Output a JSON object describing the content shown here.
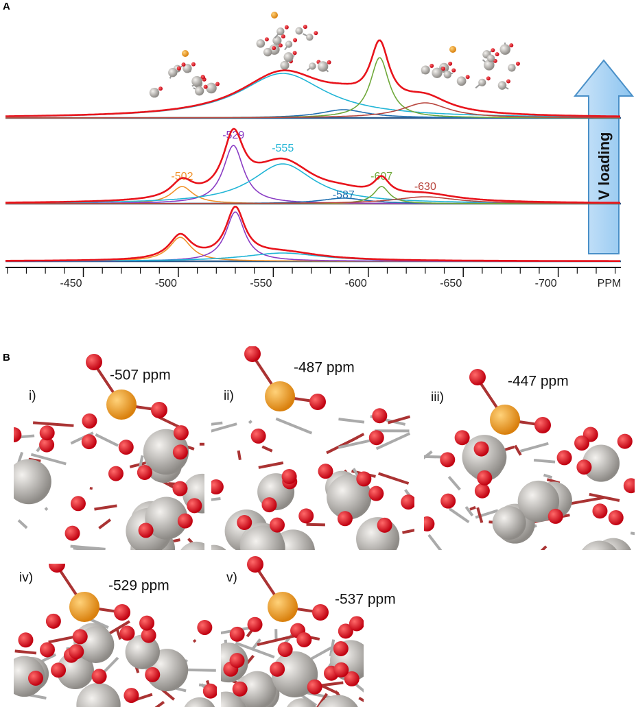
{
  "panel_a": {
    "label": "A",
    "type": "spectrum",
    "x_axis_label": "PPM",
    "xlim": [
      -409,
      -733
    ],
    "xticks": [
      -450,
      -500,
      -550,
      -600,
      -650,
      -700
    ],
    "minor_xticks": [
      -410,
      -420,
      -430,
      -440,
      -460,
      -470,
      -480,
      -490,
      -510,
      -520,
      -530,
      -540,
      -560,
      -570,
      -580,
      -590,
      -610,
      -620,
      -630,
      -640,
      -660,
      -670,
      -680,
      -690,
      -710,
      -720,
      -730
    ],
    "sum_color": "#e8141c",
    "arrow_label": "V loading",
    "spectra": [
      {
        "components": [
          {
            "center": -555,
            "width": 55,
            "amplitude": 65,
            "color": "#21b5d6",
            "labeled": false
          },
          {
            "center": -587,
            "width": 30,
            "amplitude": 12,
            "color": "#1f6fb0",
            "labeled": false
          },
          {
            "center": -606,
            "width": 12,
            "amplitude": 88,
            "color": "#6fa83a",
            "labeled": false
          },
          {
            "center": -630,
            "width": 30,
            "amplitude": 22,
            "color": "#b8463e",
            "labeled": false
          }
        ]
      },
      {
        "components": [
          {
            "center": -502,
            "width": 14,
            "amplitude": 25,
            "color": "#f0922a",
            "labeled": true
          },
          {
            "center": -529,
            "width": 13,
            "amplitude": 85,
            "color": "#8a3cc4",
            "labeled": true
          },
          {
            "center": -555,
            "width": 40,
            "amplitude": 58,
            "color": "#21b5d6",
            "labeled": true
          },
          {
            "center": -587,
            "width": 30,
            "amplitude": 8,
            "color": "#1f6fb0",
            "labeled": true
          },
          {
            "center": -607,
            "width": 10,
            "amplitude": 25,
            "color": "#6fa83a",
            "labeled": true
          },
          {
            "center": -630,
            "width": 40,
            "amplitude": 10,
            "color": "#b8463e",
            "labeled": true
          }
        ]
      },
      {
        "components": [
          {
            "center": -501,
            "width": 14,
            "amplitude": 35,
            "color": "#f0922a",
            "labeled": false
          },
          {
            "center": -530,
            "width": 12,
            "amplitude": 72,
            "color": "#8a3cc4",
            "labeled": false
          },
          {
            "center": -555,
            "width": 50,
            "amplitude": 12,
            "color": "#21b5d6",
            "labeled": false
          }
        ]
      }
    ]
  },
  "panel_b": {
    "label": "B",
    "structures": [
      {
        "numeral": "i)",
        "shift": "-507 ppm"
      },
      {
        "numeral": "ii)",
        "shift": "-487 ppm"
      },
      {
        "numeral": "iii)",
        "shift": "-447 ppm"
      },
      {
        "numeral": "iv)",
        "shift": "-529 ppm"
      },
      {
        "numeral": "v)",
        "shift": "-537 ppm"
      }
    ]
  }
}
